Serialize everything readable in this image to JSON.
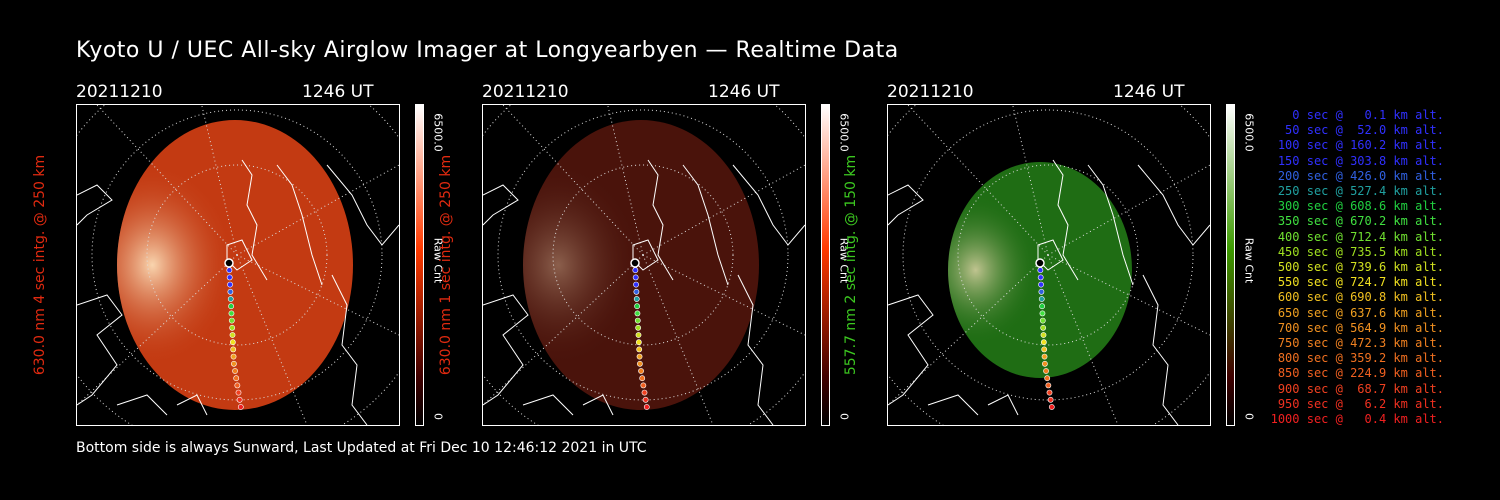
{
  "title": "Kyoto U / UEC All-sky Airglow Imager at Longyearbyen — Realtime Data",
  "footer": "Bottom side is always Sunward, Last Updated at Fri Dec 10 12:46:12 2021 in UTC",
  "panels": [
    {
      "date": "20211210",
      "time": "1246 UT",
      "label": "630.0 nm 4 sec intg. @ 250 km",
      "label_color": "#e02a10",
      "cbar_top": "6500.0",
      "cbar_unit": "Raw Cnt",
      "cbar_bottom": "0",
      "cbar_color": "#ff3a00",
      "image_color": "#c33a12",
      "image_brightness": 1.0
    },
    {
      "date": "20211210",
      "time": "1246 UT",
      "label": "630.0 nm 1 sec intg. @ 250 km",
      "label_color": "#e02a10",
      "cbar_top": "6500.0",
      "cbar_unit": "Raw Cnt",
      "cbar_bottom": "0",
      "cbar_color": "#ff3a00",
      "image_color": "#4a130b",
      "image_brightness": 0.4
    },
    {
      "date": "20211210",
      "time": "1246 UT",
      "label": "557.7 nm 2 sec intg. @ 150 km",
      "label_color": "#3cc820",
      "cbar_top": "6500.0",
      "cbar_unit": "Raw Cnt",
      "cbar_bottom": "0",
      "cbar_color": "#3c9a00",
      "image_color": "#1f6d14",
      "image_brightness": 0.8
    }
  ],
  "trajectory_legend": [
    {
      "text": "0 sec @   0.1 km alt.",
      "color": "#3030ff"
    },
    {
      "text": "50 sec @  52.0 km alt.",
      "color": "#3030ff"
    },
    {
      "text": "100 sec @ 160.2 km alt.",
      "color": "#3030ff"
    },
    {
      "text": "150 sec @ 303.8 km alt.",
      "color": "#3030ff"
    },
    {
      "text": "200 sec @ 426.0 km alt.",
      "color": "#3060e0"
    },
    {
      "text": "250 sec @ 527.4 km alt.",
      "color": "#20a0a0"
    },
    {
      "text": "300 sec @ 608.6 km alt.",
      "color": "#20d040"
    },
    {
      "text": "350 sec @ 670.2 km alt.",
      "color": "#40e040"
    },
    {
      "text": "400 sec @ 712.4 km alt.",
      "color": "#70e030"
    },
    {
      "text": "450 sec @ 735.5 km alt.",
      "color": "#a0e020"
    },
    {
      "text": "500 sec @ 739.6 km alt.",
      "color": "#d0e020"
    },
    {
      "text": "550 sec @ 724.7 km alt.",
      "color": "#f0e020"
    },
    {
      "text": "600 sec @ 690.8 km alt.",
      "color": "#f0c020"
    },
    {
      "text": "650 sec @ 637.6 km alt.",
      "color": "#f0a020"
    },
    {
      "text": "700 sec @ 564.9 km alt.",
      "color": "#f09020"
    },
    {
      "text": "750 sec @ 472.3 km alt.",
      "color": "#f08020"
    },
    {
      "text": "800 sec @ 359.2 km alt.",
      "color": "#f07020"
    },
    {
      "text": "850 sec @ 224.9 km alt.",
      "color": "#f06020"
    },
    {
      "text": "900 sec @  68.7 km alt.",
      "color": "#f04020"
    },
    {
      "text": "950 sec @   6.2 km alt.",
      "color": "#f03020"
    },
    {
      "text": "1000 sec @   0.4 km alt.",
      "color": "#f02020"
    }
  ]
}
